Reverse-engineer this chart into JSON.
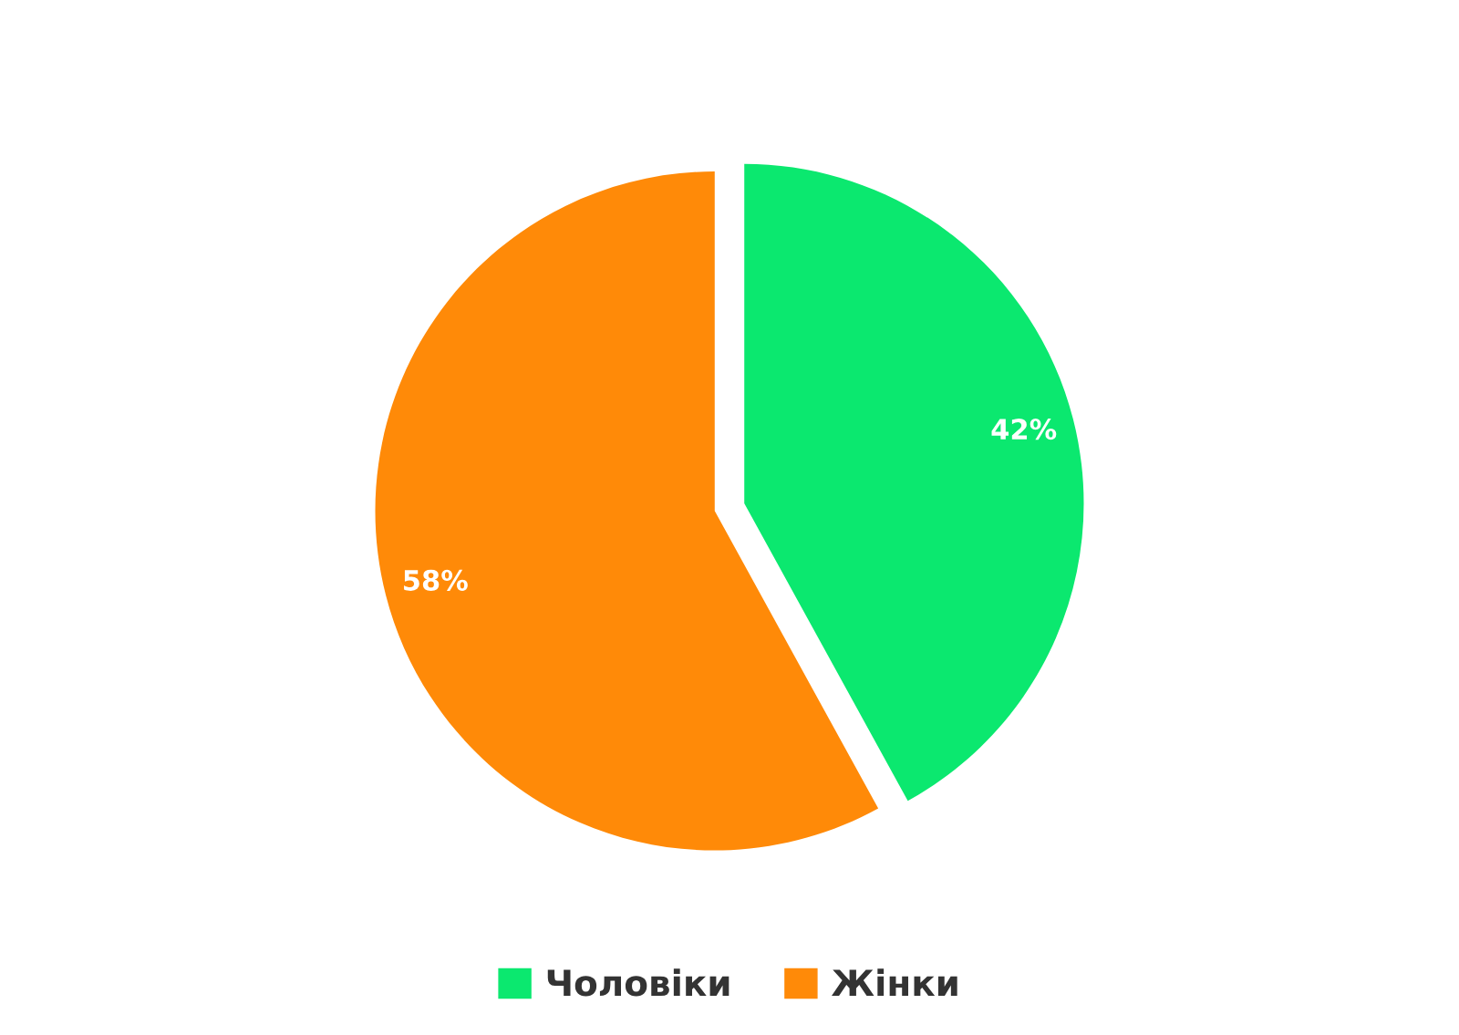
{
  "chart_data": {
    "type": "pie",
    "categories": [
      "Чоловіки",
      "Жінки"
    ],
    "values": [
      42,
      58
    ],
    "colors": [
      "#0be86f",
      "#ff8a08"
    ],
    "value_labels": [
      "42%",
      "58%"
    ],
    "legend": "bottom"
  }
}
